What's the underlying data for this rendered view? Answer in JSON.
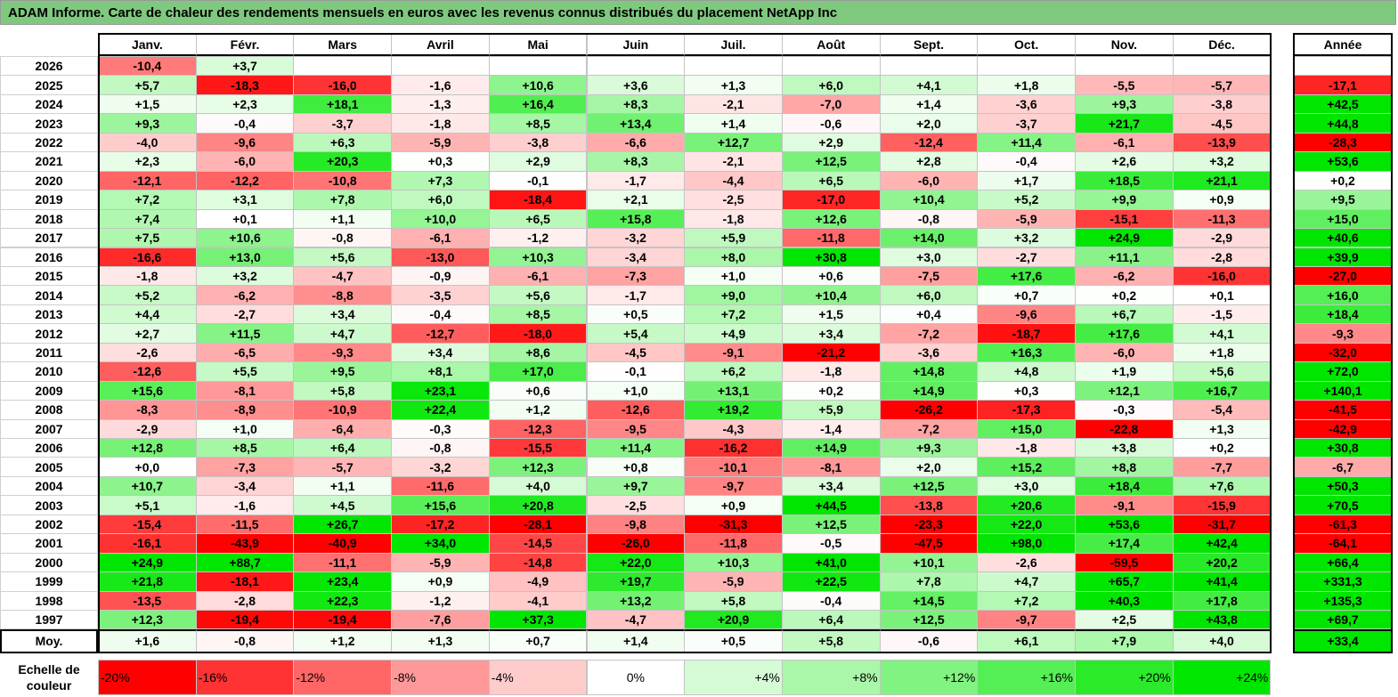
{
  "title": "ADAM Informe. Carte de chaleur des rendements mensuels en euros avec les revenus connus distribués du placement NetApp Inc",
  "chart_data": {
    "type": "heatmap",
    "title": "ADAM Informe. Carte de chaleur des rendements mensuels en euros avec les revenus connus distribués du placement NetApp Inc",
    "columns": [
      "Janv.",
      "Févr.",
      "Mars",
      "Avril",
      "Mai",
      "Juin",
      "Juil.",
      "Août",
      "Sept.",
      "Oct.",
      "Nov.",
      "Déc."
    ],
    "year_header": "Année",
    "rows": [
      {
        "year": "2026",
        "values": [
          "-10,4",
          "+3,7",
          "",
          "",
          "",
          "",
          "",
          "",
          "",
          "",
          "",
          ""
        ],
        "annual": ""
      },
      {
        "year": "2025",
        "values": [
          "+5,7",
          "-18,3",
          "-16,0",
          "-1,6",
          "+10,6",
          "+3,6",
          "+1,3",
          "+6,0",
          "+4,1",
          "+1,8",
          "-5,5",
          "-5,7"
        ],
        "annual": "-17,1"
      },
      {
        "year": "2024",
        "values": [
          "+1,5",
          "+2,3",
          "+18,1",
          "-1,3",
          "+16,4",
          "+8,3",
          "-2,1",
          "-7,0",
          "+1,4",
          "-3,6",
          "+9,3",
          "-3,8"
        ],
        "annual": "+42,5"
      },
      {
        "year": "2023",
        "values": [
          "+9,3",
          "-0,4",
          "-3,7",
          "-1,8",
          "+8,5",
          "+13,4",
          "+1,4",
          "-0,6",
          "+2,0",
          "-3,7",
          "+21,7",
          "-4,5"
        ],
        "annual": "+44,8"
      },
      {
        "year": "2022",
        "values": [
          "-4,0",
          "-9,6",
          "+6,3",
          "-5,9",
          "-3,8",
          "-6,6",
          "+12,7",
          "+2,9",
          "-12,4",
          "+11,4",
          "-6,1",
          "-13,9"
        ],
        "annual": "-28,3"
      },
      {
        "year": "2021",
        "values": [
          "+2,3",
          "-6,0",
          "+20,3",
          "+0,3",
          "+2,9",
          "+8,3",
          "-2,1",
          "+12,5",
          "+2,8",
          "-0,4",
          "+2,6",
          "+3,2"
        ],
        "annual": "+53,6"
      },
      {
        "year": "2020",
        "values": [
          "-12,1",
          "-12,2",
          "-10,8",
          "+7,3",
          "-0,1",
          "-1,7",
          "-4,4",
          "+6,5",
          "-6,0",
          "+1,7",
          "+18,5",
          "+21,1"
        ],
        "annual": "+0,2"
      },
      {
        "year": "2019",
        "values": [
          "+7,2",
          "+3,1",
          "+7,8",
          "+6,0",
          "-18,4",
          "+2,1",
          "-2,5",
          "-17,0",
          "+10,4",
          "+5,2",
          "+9,9",
          "+0,9"
        ],
        "annual": "+9,5"
      },
      {
        "year": "2018",
        "values": [
          "+7,4",
          "+0,1",
          "+1,1",
          "+10,0",
          "+6,5",
          "+15,8",
          "-1,8",
          "+12,6",
          "-0,8",
          "-5,9",
          "-15,1",
          "-11,3"
        ],
        "annual": "+15,0"
      },
      {
        "year": "2017",
        "values": [
          "+7,5",
          "+10,6",
          "-0,8",
          "-6,1",
          "-1,2",
          "-3,2",
          "+5,9",
          "-11,8",
          "+14,0",
          "+3,2",
          "+24,9",
          "-2,9"
        ],
        "annual": "+40,6"
      },
      {
        "year": "2016",
        "values": [
          "-16,6",
          "+13,0",
          "+5,6",
          "-13,0",
          "+10,3",
          "-3,4",
          "+8,0",
          "+30,8",
          "+3,0",
          "-2,7",
          "+11,1",
          "-2,8"
        ],
        "annual": "+39,9"
      },
      {
        "year": "2015",
        "values": [
          "-1,8",
          "+3,2",
          "-4,7",
          "-0,9",
          "-6,1",
          "-7,3",
          "+1,0",
          "+0,6",
          "-7,5",
          "+17,6",
          "-6,2",
          "-16,0"
        ],
        "annual": "-27,0"
      },
      {
        "year": "2014",
        "values": [
          "+5,2",
          "-6,2",
          "-8,8",
          "-3,5",
          "+5,6",
          "-1,7",
          "+9,0",
          "+10,4",
          "+6,0",
          "+0,7",
          "+0,2",
          "+0,1"
        ],
        "annual": "+16,0"
      },
      {
        "year": "2013",
        "values": [
          "+4,4",
          "-2,7",
          "+3,4",
          "-0,4",
          "+8,5",
          "+0,5",
          "+7,2",
          "+1,5",
          "+0,4",
          "-9,6",
          "+6,7",
          "-1,5"
        ],
        "annual": "+18,4"
      },
      {
        "year": "2012",
        "values": [
          "+2,7",
          "+11,5",
          "+4,7",
          "-12,7",
          "-18,0",
          "+5,4",
          "+4,9",
          "+3,4",
          "-7,2",
          "-18,7",
          "+17,6",
          "+4,1"
        ],
        "annual": "-9,3"
      },
      {
        "year": "2011",
        "values": [
          "-2,6",
          "-6,5",
          "-9,3",
          "+3,4",
          "+8,6",
          "-4,5",
          "-9,1",
          "-21,2",
          "-3,6",
          "+16,3",
          "-6,0",
          "+1,8"
        ],
        "annual": "-32,0"
      },
      {
        "year": "2010",
        "values": [
          "-12,6",
          "+5,5",
          "+9,5",
          "+8,1",
          "+17,0",
          "-0,1",
          "+6,2",
          "-1,8",
          "+14,8",
          "+4,8",
          "+1,9",
          "+5,6"
        ],
        "annual": "+72,0"
      },
      {
        "year": "2009",
        "values": [
          "+15,6",
          "-8,1",
          "+5,8",
          "+23,1",
          "+0,6",
          "+1,0",
          "+13,1",
          "+0,2",
          "+14,9",
          "+0,3",
          "+12,1",
          "+16,7"
        ],
        "annual": "+140,1"
      },
      {
        "year": "2008",
        "values": [
          "-8,3",
          "-8,9",
          "-10,9",
          "+22,4",
          "+1,2",
          "-12,6",
          "+19,2",
          "+5,9",
          "-26,2",
          "-17,3",
          "-0,3",
          "-5,4"
        ],
        "annual": "-41,5"
      },
      {
        "year": "2007",
        "values": [
          "-2,9",
          "+1,0",
          "-6,4",
          "-0,3",
          "-12,3",
          "-9,5",
          "-4,3",
          "-1,4",
          "-7,2",
          "+15,0",
          "-22,8",
          "+1,3"
        ],
        "annual": "-42,9"
      },
      {
        "year": "2006",
        "values": [
          "+12,8",
          "+8,5",
          "+6,4",
          "-0,8",
          "-15,5",
          "+11,4",
          "-16,2",
          "+14,9",
          "+9,3",
          "-1,8",
          "+3,8",
          "+0,2"
        ],
        "annual": "+30,8"
      },
      {
        "year": "2005",
        "values": [
          "+0,0",
          "-7,3",
          "-5,7",
          "-3,2",
          "+12,3",
          "+0,8",
          "-10,1",
          "-8,1",
          "+2,0",
          "+15,2",
          "+8,8",
          "-7,7"
        ],
        "annual": "-6,7"
      },
      {
        "year": "2004",
        "values": [
          "+10,7",
          "-3,4",
          "+1,1",
          "-11,6",
          "+4,0",
          "+9,7",
          "-9,7",
          "+3,4",
          "+12,5",
          "+3,0",
          "+18,4",
          "+7,6"
        ],
        "annual": "+50,3"
      },
      {
        "year": "2003",
        "values": [
          "+5,1",
          "-1,6",
          "+4,5",
          "+15,6",
          "+20,8",
          "-2,5",
          "+0,9",
          "+44,5",
          "-13,8",
          "+20,6",
          "-9,1",
          "-15,9"
        ],
        "annual": "+70,5"
      },
      {
        "year": "2002",
        "values": [
          "-15,4",
          "-11,5",
          "+26,7",
          "-17,2",
          "-28,1",
          "-9,8",
          "-31,3",
          "+12,5",
          "-23,3",
          "+22,0",
          "+53,6",
          "-31,7"
        ],
        "annual": "-61,3"
      },
      {
        "year": "2001",
        "values": [
          "-16,1",
          "-43,9",
          "-40,9",
          "+34,0",
          "-14,5",
          "-26,0",
          "-11,8",
          "-0,5",
          "-47,5",
          "+98,0",
          "+17,4",
          "+42,4"
        ],
        "annual": "-64,1"
      },
      {
        "year": "2000",
        "values": [
          "+24,9",
          "+88,7",
          "-11,1",
          "-5,9",
          "-14,8",
          "+22,0",
          "+10,3",
          "+41,0",
          "+10,1",
          "-2,6",
          "-59,5",
          "+20,2"
        ],
        "annual": "+66,4"
      },
      {
        "year": "1999",
        "values": [
          "+21,8",
          "-18,1",
          "+23,4",
          "+0,9",
          "-4,9",
          "+19,7",
          "-5,9",
          "+22,5",
          "+7,8",
          "+4,7",
          "+65,7",
          "+41,4"
        ],
        "annual": "+331,3"
      },
      {
        "year": "1998",
        "values": [
          "-13,5",
          "-2,8",
          "+22,3",
          "-1,2",
          "-4,1",
          "+13,2",
          "+5,8",
          "-0,4",
          "+14,5",
          "+7,2",
          "+40,3",
          "+17,8"
        ],
        "annual": "+135,3"
      },
      {
        "year": "1997",
        "values": [
          "+12,3",
          "-19,4",
          "-19,4",
          "-7,6",
          "+37,3",
          "-4,7",
          "+20,9",
          "+6,4",
          "+12,5",
          "-9,7",
          "+2,5",
          "+43,8"
        ],
        "annual": "+69,7"
      }
    ],
    "average": {
      "label": "Moy.",
      "values": [
        "+1,6",
        "-0,8",
        "+1,2",
        "+1,3",
        "+0,7",
        "+1,4",
        "+0,5",
        "+5,8",
        "-0,6",
        "+6,1",
        "+7,9",
        "+4,0"
      ],
      "annual": "+33,4"
    },
    "legend": {
      "label_line1": "Echelle de",
      "label_line2": "couleur",
      "steps": [
        "-20%",
        "-16%",
        "-12%",
        "-8%",
        "-4%",
        "0%",
        "+4%",
        "+8%",
        "+12%",
        "+16%",
        "+20%",
        "+24%"
      ],
      "step_values": [
        -20,
        -16,
        -12,
        -8,
        -4,
        0,
        4,
        8,
        12,
        16,
        20,
        24
      ]
    },
    "colors": {
      "negative": "#ff0000",
      "zero": "#ffffff",
      "positive": "#00e600"
    },
    "color_scale": {
      "min": -20,
      "max": 24
    }
  }
}
